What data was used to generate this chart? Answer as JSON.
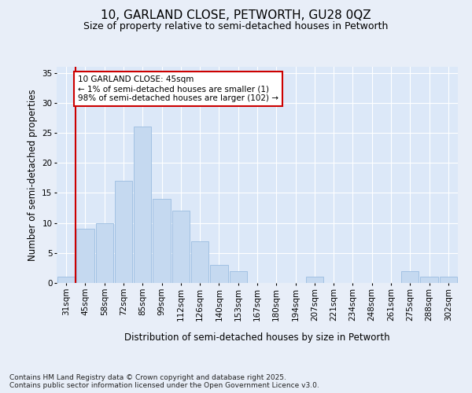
{
  "title": "10, GARLAND CLOSE, PETWORTH, GU28 0QZ",
  "subtitle": "Size of property relative to semi-detached houses in Petworth",
  "xlabel": "Distribution of semi-detached houses by size in Petworth",
  "ylabel": "Number of semi-detached properties",
  "categories": [
    "31sqm",
    "45sqm",
    "58sqm",
    "72sqm",
    "85sqm",
    "99sqm",
    "112sqm",
    "126sqm",
    "140sqm",
    "153sqm",
    "167sqm",
    "180sqm",
    "194sqm",
    "207sqm",
    "221sqm",
    "234sqm",
    "248sqm",
    "261sqm",
    "275sqm",
    "288sqm",
    "302sqm"
  ],
  "values": [
    1,
    9,
    10,
    17,
    26,
    14,
    12,
    7,
    3,
    2,
    0,
    0,
    0,
    1,
    0,
    0,
    0,
    0,
    2,
    1,
    1
  ],
  "highlight_index": 1,
  "highlight_color": "#cc0000",
  "bar_color": "#c5d9f0",
  "bar_edge_color": "#9bbde0",
  "annotation_text": "10 GARLAND CLOSE: 45sqm\n← 1% of semi-detached houses are smaller (1)\n98% of semi-detached houses are larger (102) →",
  "annotation_box_color": "#ffffff",
  "annotation_box_edge_color": "#cc0000",
  "ylim": [
    0,
    36
  ],
  "yticks": [
    0,
    5,
    10,
    15,
    20,
    25,
    30,
    35
  ],
  "footnote": "Contains HM Land Registry data © Crown copyright and database right 2025.\nContains public sector information licensed under the Open Government Licence v3.0.",
  "background_color": "#e8eef8",
  "plot_bg_color": "#dce8f8",
  "title_fontsize": 11,
  "subtitle_fontsize": 9,
  "axis_label_fontsize": 8.5,
  "tick_fontsize": 7.5,
  "annotation_fontsize": 7.5,
  "footnote_fontsize": 6.5
}
